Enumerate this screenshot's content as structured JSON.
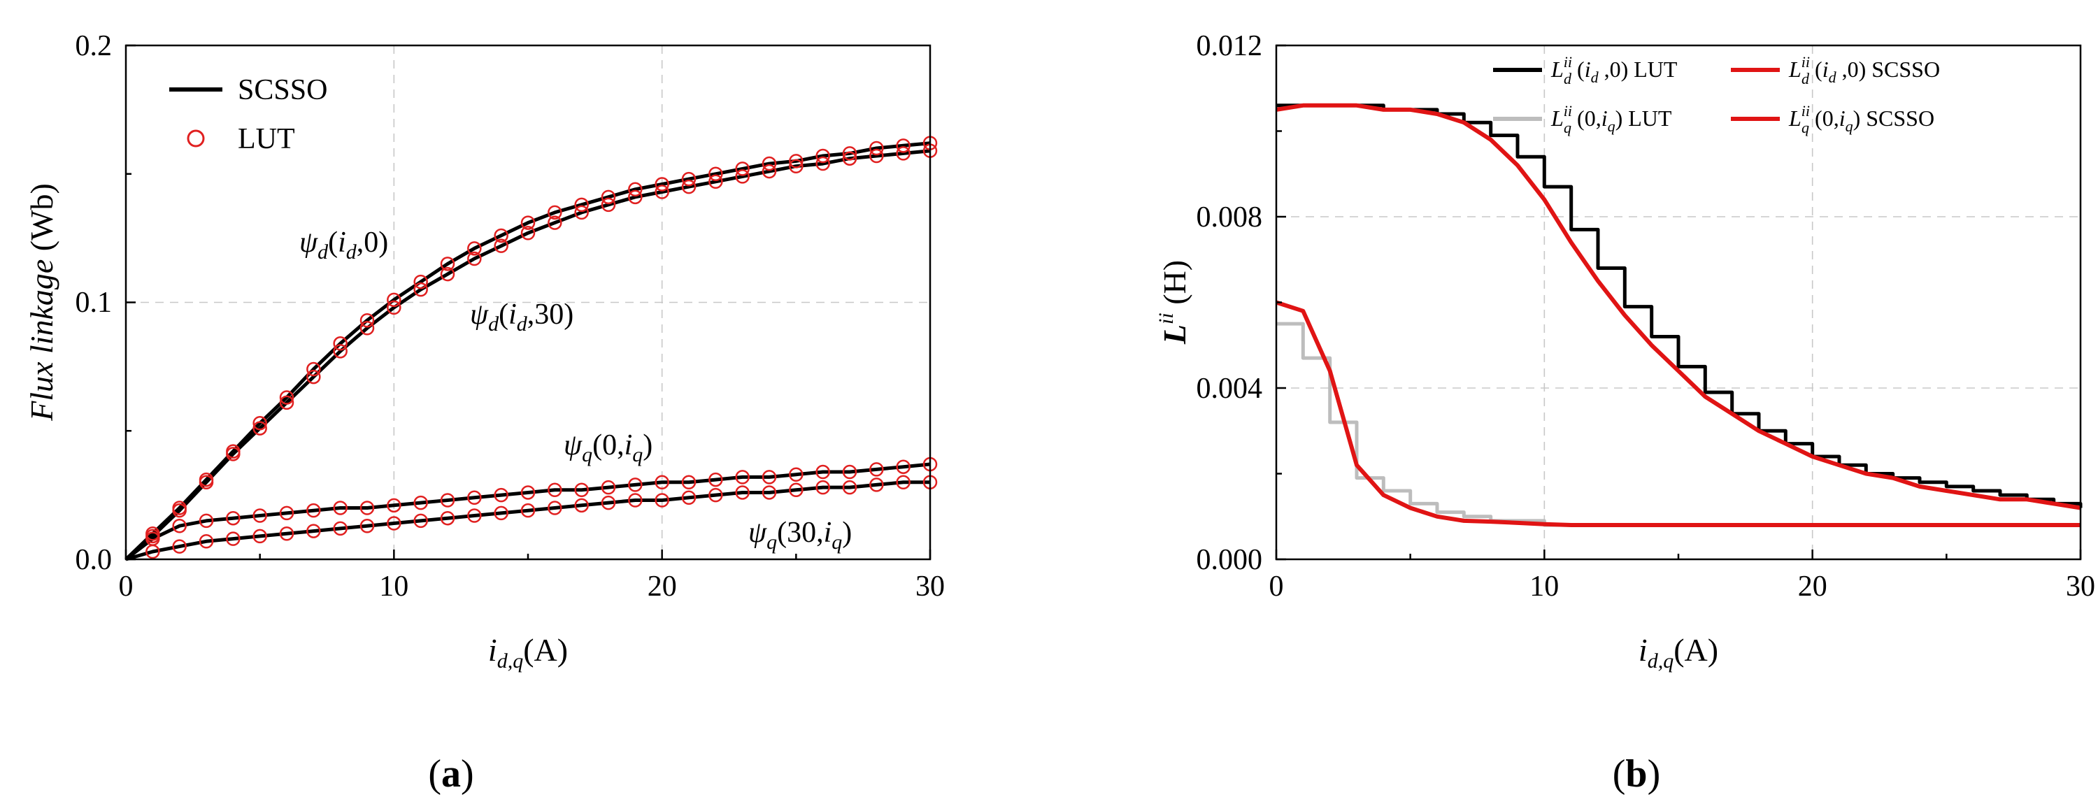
{
  "chart_data": [
    {
      "panel": "(a)",
      "type": "line",
      "xlabel": "i_d,q(A)",
      "ylabel": "Flux linkage (Wb)",
      "xlim": [
        0,
        30
      ],
      "ylim": [
        0,
        0.2
      ],
      "xticks": [
        "0",
        "10",
        "20",
        "30"
      ],
      "yticks": [
        "0.0",
        "0.1",
        "0.2"
      ],
      "grid": true,
      "legend": [
        "SCSSO",
        "LUT"
      ],
      "legend_location": "top-left",
      "annotations": [
        "ψd(id,0)",
        "ψd(id,30)",
        "ψq(0,iq)",
        "ψq(30,iq)"
      ],
      "x": [
        0,
        1,
        2,
        3,
        4,
        5,
        6,
        7,
        8,
        9,
        10,
        11,
        12,
        13,
        14,
        15,
        16,
        17,
        18,
        19,
        20,
        21,
        22,
        23,
        24,
        25,
        26,
        27,
        28,
        29,
        30
      ],
      "series": [
        {
          "name": "ψd(id,0)",
          "values": [
            0.0,
            0.01,
            0.02,
            0.031,
            0.042,
            0.053,
            0.063,
            0.074,
            0.084,
            0.093,
            0.101,
            0.108,
            0.115,
            0.121,
            0.126,
            0.131,
            0.135,
            0.138,
            0.141,
            0.144,
            0.146,
            0.148,
            0.15,
            0.152,
            0.154,
            0.155,
            0.157,
            0.158,
            0.16,
            0.161,
            0.162
          ]
        },
        {
          "name": "ψd(id,30)",
          "values": [
            0.0,
            0.009,
            0.019,
            0.03,
            0.041,
            0.051,
            0.061,
            0.071,
            0.081,
            0.09,
            0.098,
            0.105,
            0.111,
            0.117,
            0.122,
            0.127,
            0.131,
            0.135,
            0.138,
            0.141,
            0.143,
            0.145,
            0.147,
            0.149,
            0.151,
            0.153,
            0.154,
            0.156,
            0.157,
            0.158,
            0.159
          ]
        },
        {
          "name": "ψq(0,iq)",
          "values": [
            0.0,
            0.008,
            0.013,
            0.015,
            0.016,
            0.017,
            0.018,
            0.019,
            0.02,
            0.02,
            0.021,
            0.022,
            0.023,
            0.024,
            0.025,
            0.026,
            0.027,
            0.027,
            0.028,
            0.029,
            0.03,
            0.03,
            0.031,
            0.032,
            0.032,
            0.033,
            0.034,
            0.034,
            0.035,
            0.036,
            0.037
          ]
        },
        {
          "name": "ψq(30,iq)",
          "values": [
            0.0,
            0.003,
            0.005,
            0.007,
            0.008,
            0.009,
            0.01,
            0.011,
            0.012,
            0.013,
            0.014,
            0.015,
            0.016,
            0.017,
            0.018,
            0.019,
            0.02,
            0.021,
            0.022,
            0.023,
            0.023,
            0.024,
            0.025,
            0.026,
            0.026,
            0.027,
            0.028,
            0.028,
            0.029,
            0.03,
            0.03
          ]
        }
      ]
    },
    {
      "panel": "(b)",
      "type": "line",
      "xlabel": "i_d,q(A)",
      "ylabel": "L^ii (H)",
      "xlim": [
        0,
        30
      ],
      "ylim": [
        0,
        0.012
      ],
      "xticks": [
        "0",
        "10",
        "20",
        "30"
      ],
      "yticks": [
        "0.000",
        "0.004",
        "0.008",
        "0.012"
      ],
      "grid": true,
      "legend": [
        "Ld^ii (id ,0) LUT",
        "Ld^ii (id ,0) SCSSO",
        "Lq^ii (0,iq)  LUT",
        "Lq^ii (0,iq)  SCSSO"
      ],
      "legend_location": "top-right",
      "x": [
        0,
        1,
        2,
        3,
        4,
        5,
        6,
        7,
        8,
        9,
        10,
        11,
        12,
        13,
        14,
        15,
        16,
        17,
        18,
        19,
        20,
        21,
        22,
        23,
        24,
        25,
        26,
        27,
        28,
        29,
        30
      ],
      "series": [
        {
          "name": "Ld^ii (id ,0) LUT",
          "style": "step",
          "values": [
            0.0106,
            0.0106,
            0.0106,
            0.0106,
            0.0105,
            0.0105,
            0.0104,
            0.0102,
            0.0099,
            0.0094,
            0.0087,
            0.0077,
            0.0068,
            0.0059,
            0.0052,
            0.0045,
            0.0039,
            0.0034,
            0.003,
            0.0027,
            0.0024,
            0.0022,
            0.002,
            0.0019,
            0.0018,
            0.0017,
            0.0016,
            0.0015,
            0.0014,
            0.0013,
            0.0012
          ]
        },
        {
          "name": "Ld^ii (id ,0) SCSSO",
          "values": [
            0.0105,
            0.0106,
            0.0106,
            0.0106,
            0.0105,
            0.0105,
            0.0104,
            0.0102,
            0.0098,
            0.0092,
            0.0084,
            0.0074,
            0.0065,
            0.0057,
            0.005,
            0.0044,
            0.0038,
            0.0034,
            0.003,
            0.0027,
            0.0024,
            0.0022,
            0.002,
            0.0019,
            0.0017,
            0.0016,
            0.0015,
            0.0014,
            0.0014,
            0.0013,
            0.0012
          ]
        },
        {
          "name": "Lq^ii (0,iq)  LUT",
          "style": "step",
          "values": [
            0.0055,
            0.0047,
            0.0032,
            0.0019,
            0.0016,
            0.0013,
            0.0011,
            0.001,
            0.0009,
            0.0009,
            0.0008,
            0.0008,
            0.0008,
            0.0008,
            0.0008,
            0.0008,
            0.0008,
            0.0008,
            0.0008,
            0.0008,
            0.0008,
            0.0008,
            0.0008,
            0.0008,
            0.0008,
            0.0008,
            0.0008,
            0.0008,
            0.0008,
            0.0008,
            0.0008
          ]
        },
        {
          "name": "Lq^ii (0,iq)  SCSSO",
          "values": [
            0.006,
            0.0058,
            0.0044,
            0.0022,
            0.0015,
            0.0012,
            0.001,
            0.0009,
            0.00088,
            0.00085,
            0.00082,
            0.0008,
            0.0008,
            0.0008,
            0.0008,
            0.0008,
            0.0008,
            0.0008,
            0.0008,
            0.0008,
            0.0008,
            0.0008,
            0.0008,
            0.0008,
            0.0008,
            0.0008,
            0.0008,
            0.0008,
            0.0008,
            0.0008,
            0.0008
          ]
        }
      ]
    }
  ],
  "colors": {
    "scsso_black": "#000000",
    "lut_marker": "#e02020",
    "scsso_red": "#e01414",
    "lut_grey": "#bdbdbd"
  }
}
